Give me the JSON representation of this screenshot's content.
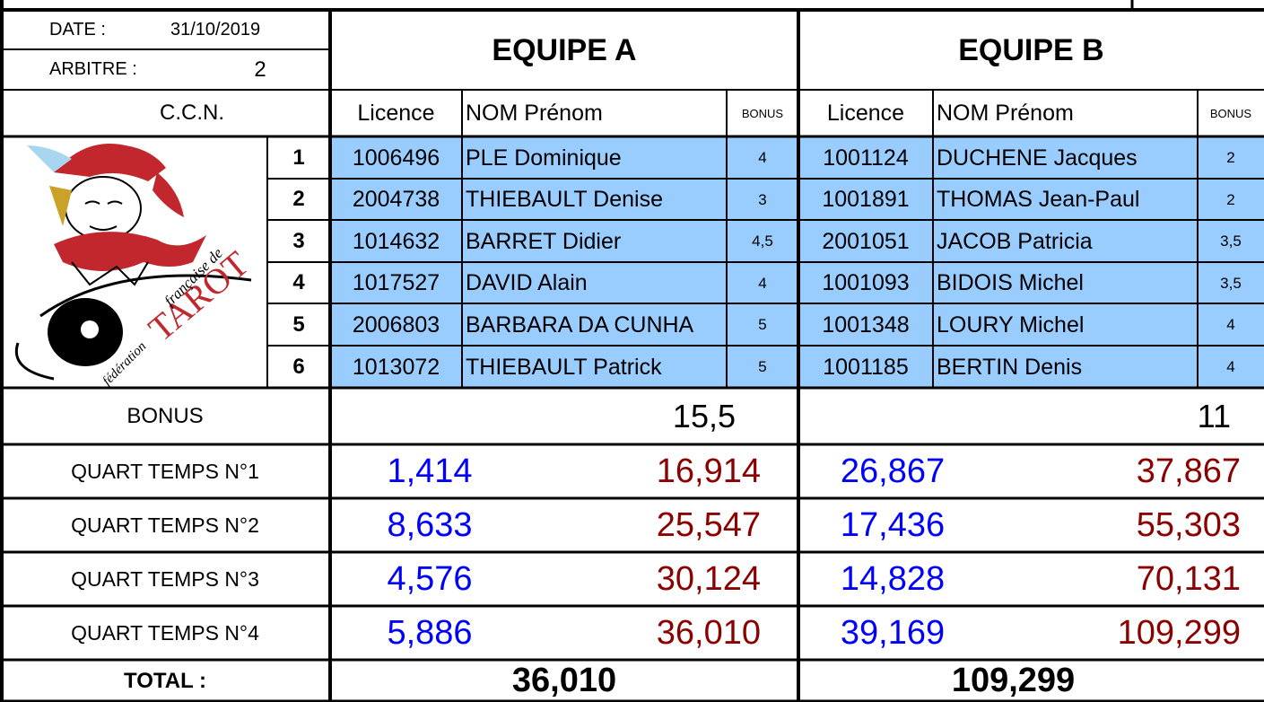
{
  "header": {
    "date_label": "DATE :",
    "date": "31/10/2019",
    "referee_label": "ARBITRE :",
    "referee": "2",
    "ccn": "C.C.N."
  },
  "logo": {
    "line1": "fédération",
    "line2": "française de",
    "line3": "TAROT"
  },
  "columns": [
    "Licence",
    "NOM Prénom",
    "BONUS"
  ],
  "row_numbers": [
    "1",
    "2",
    "3",
    "4",
    "5",
    "6"
  ],
  "labels": {
    "bonus": "BONUS",
    "quarters": [
      "QUART TEMPS N°1",
      "QUART TEMPS N°2",
      "QUART TEMPS N°3",
      "QUART TEMPS N°4"
    ],
    "total": "TOTAL :"
  },
  "teams": [
    {
      "name": "EQUIPE A",
      "players": [
        [
          "1006496",
          "PLE Dominique",
          "4"
        ],
        [
          "2004738",
          "THIEBAULT Denise",
          "3"
        ],
        [
          "1014632",
          "BARRET Didier",
          "4,5"
        ],
        [
          "1017527",
          "DAVID Alain",
          "4"
        ],
        [
          "2006803",
          "BARBARA DA CUNHA",
          "5"
        ],
        [
          "1013072",
          "THIEBAULT Patrick",
          "5"
        ]
      ],
      "bonus": "15,5",
      "quarters": [
        [
          "1,414",
          "16,914"
        ],
        [
          "8,633",
          "25,547"
        ],
        [
          "4,576",
          "30,124"
        ],
        [
          "5,886",
          "36,010"
        ]
      ],
      "total": "36,010"
    },
    {
      "name": "EQUIPE B",
      "players": [
        [
          "1001124",
          "DUCHENE Jacques",
          "2"
        ],
        [
          "1001891",
          "THOMAS Jean-Paul",
          "2"
        ],
        [
          "2001051",
          "JACOB Patricia",
          "3,5"
        ],
        [
          "1001093",
          "BIDOIS Michel",
          "3,5"
        ],
        [
          "1001348",
          "LOURY Michel",
          "4"
        ],
        [
          "1001185",
          "BERTIN Denis",
          "4"
        ]
      ],
      "bonus": "11",
      "quarters": [
        [
          "26,867",
          "37,867"
        ],
        [
          "17,436",
          "55,303"
        ],
        [
          "14,828",
          "70,131"
        ],
        [
          "39,169",
          "109,299"
        ]
      ],
      "total": "109,299"
    }
  ]
}
